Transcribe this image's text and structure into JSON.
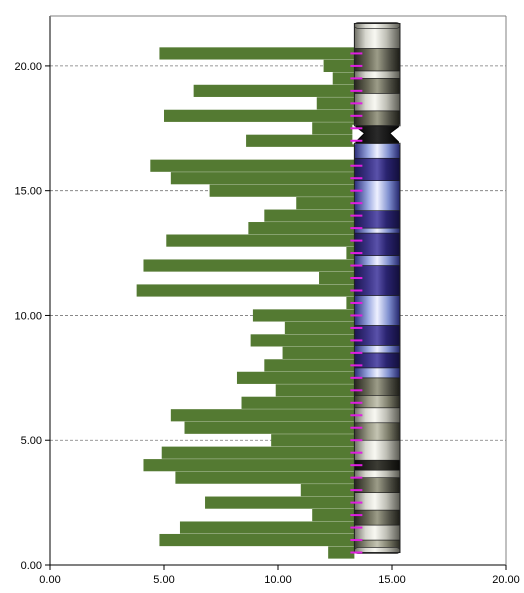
{
  "chart_data": {
    "type": "bar",
    "orientation": "horizontal",
    "title": "",
    "xlabel": "",
    "ylabel": "",
    "xlim": [
      0,
      20
    ],
    "ylim": [
      0,
      22
    ],
    "x_ticks": [
      "0.00",
      "5.00",
      "10.00",
      "15.00",
      "20.00"
    ],
    "y_ticks": [
      "0.00",
      "5.00",
      "10.00",
      "15.00",
      "20.00"
    ],
    "grid": "horizontal dashed at y ticks",
    "bar_color": "#547a32",
    "bar_base": 13.35,
    "series": [
      {
        "values": [
          {
            "y": 0.5,
            "x": 12.2
          },
          {
            "y": 1.0,
            "x": 4.8
          },
          {
            "y": 1.5,
            "x": 5.7
          },
          {
            "y": 2.0,
            "x": 11.5
          },
          {
            "y": 2.5,
            "x": 6.8
          },
          {
            "y": 3.0,
            "x": 11.0
          },
          {
            "y": 3.5,
            "x": 5.5
          },
          {
            "y": 4.0,
            "x": 4.1
          },
          {
            "y": 4.5,
            "x": 4.9
          },
          {
            "y": 5.0,
            "x": 9.7
          },
          {
            "y": 5.5,
            "x": 5.9
          },
          {
            "y": 6.0,
            "x": 5.3
          },
          {
            "y": 6.5,
            "x": 8.4
          },
          {
            "y": 7.0,
            "x": 9.9
          },
          {
            "y": 7.5,
            "x": 8.2
          },
          {
            "y": 8.0,
            "x": 9.4
          },
          {
            "y": 8.5,
            "x": 10.2
          },
          {
            "y": 9.0,
            "x": 8.8
          },
          {
            "y": 9.5,
            "x": 10.3
          },
          {
            "y": 10.0,
            "x": 8.9
          },
          {
            "y": 10.5,
            "x": 13.0
          },
          {
            "y": 11.0,
            "x": 3.8
          },
          {
            "y": 11.5,
            "x": 11.8
          },
          {
            "y": 12.0,
            "x": 4.1
          },
          {
            "y": 12.5,
            "x": 13.0
          },
          {
            "y": 13.0,
            "x": 5.1
          },
          {
            "y": 13.5,
            "x": 8.7
          },
          {
            "y": 14.0,
            "x": 9.4
          },
          {
            "y": 14.5,
            "x": 10.8
          },
          {
            "y": 15.0,
            "x": 7.0
          },
          {
            "y": 15.5,
            "x": 5.3
          },
          {
            "y": 16.0,
            "x": 4.4
          },
          {
            "y": 17.0,
            "x": 8.6
          },
          {
            "y": 17.5,
            "x": 11.5
          },
          {
            "y": 18.0,
            "x": 5.0
          },
          {
            "y": 18.5,
            "x": 11.7
          },
          {
            "y": 19.0,
            "x": 6.3
          },
          {
            "y": 19.5,
            "x": 12.4
          },
          {
            "y": 20.0,
            "x": 12.0
          },
          {
            "y": 20.5,
            "x": 4.8
          }
        ]
      }
    ],
    "chromosome": {
      "x_range": [
        13.35,
        15.35
      ],
      "y_range": [
        0.5,
        21.7
      ],
      "centromere_y": 17.3,
      "bands": [
        {
          "y0": 0.5,
          "y1": 1.0,
          "stain": "gpos50"
        },
        {
          "y0": 1.0,
          "y1": 1.6,
          "stain": "gneg"
        },
        {
          "y0": 1.6,
          "y1": 2.2,
          "stain": "gpos75"
        },
        {
          "y0": 2.2,
          "y1": 2.9,
          "stain": "gneg"
        },
        {
          "y0": 2.9,
          "y1": 3.5,
          "stain": "gpos75"
        },
        {
          "y0": 3.5,
          "y1": 3.8,
          "stain": "gneg"
        },
        {
          "y0": 3.8,
          "y1": 4.2,
          "stain": "gpos100"
        },
        {
          "y0": 4.2,
          "y1": 5.0,
          "stain": "gneg"
        },
        {
          "y0": 5.0,
          "y1": 5.7,
          "stain": "gpos50"
        },
        {
          "y0": 5.7,
          "y1": 6.3,
          "stain": "gneg"
        },
        {
          "y0": 6.3,
          "y1": 6.8,
          "stain": "gpos50"
        },
        {
          "y0": 6.8,
          "y1": 7.5,
          "stain": "gpos75"
        },
        {
          "y0": 7.5,
          "y1": 7.9,
          "stain": "hetlight"
        },
        {
          "y0": 7.9,
          "y1": 8.5,
          "stain": "het"
        },
        {
          "y0": 8.5,
          "y1": 8.8,
          "stain": "hetlight"
        },
        {
          "y0": 8.8,
          "y1": 9.6,
          "stain": "het"
        },
        {
          "y0": 9.6,
          "y1": 10.8,
          "stain": "hetlight"
        },
        {
          "y0": 10.8,
          "y1": 12.0,
          "stain": "het"
        },
        {
          "y0": 12.0,
          "y1": 12.4,
          "stain": "hetlight"
        },
        {
          "y0": 12.4,
          "y1": 13.3,
          "stain": "het"
        },
        {
          "y0": 13.3,
          "y1": 13.5,
          "stain": "hetlight"
        },
        {
          "y0": 13.5,
          "y1": 14.2,
          "stain": "het"
        },
        {
          "y0": 14.2,
          "y1": 15.4,
          "stain": "hetlight"
        },
        {
          "y0": 15.4,
          "y1": 16.3,
          "stain": "het"
        },
        {
          "y0": 16.3,
          "y1": 16.9,
          "stain": "hetlight"
        },
        {
          "y0": 17.6,
          "y1": 18.2,
          "stain": "gpos75"
        },
        {
          "y0": 18.2,
          "y1": 18.9,
          "stain": "gneg"
        },
        {
          "y0": 18.9,
          "y1": 19.5,
          "stain": "gpos75"
        },
        {
          "y0": 19.5,
          "y1": 19.8,
          "stain": "gneg"
        },
        {
          "y0": 19.8,
          "y1": 20.7,
          "stain": "gpos75"
        },
        {
          "y0": 20.7,
          "y1": 21.7,
          "stain": "gneg"
        }
      ],
      "markers_y": [
        0.5,
        1.0,
        1.5,
        2.0,
        2.5,
        3.0,
        3.5,
        4.0,
        4.5,
        5.0,
        5.5,
        6.0,
        6.5,
        7.0,
        7.5,
        8.0,
        8.5,
        9.0,
        9.5,
        10.0,
        10.5,
        11.0,
        11.5,
        12.0,
        12.5,
        13.0,
        13.5,
        14.0,
        14.5,
        15.0,
        15.5,
        16.0,
        17.0,
        17.5,
        18.0,
        18.5,
        19.0,
        19.5,
        20.0,
        20.5
      ],
      "marker_color": "#e01ee0"
    }
  }
}
